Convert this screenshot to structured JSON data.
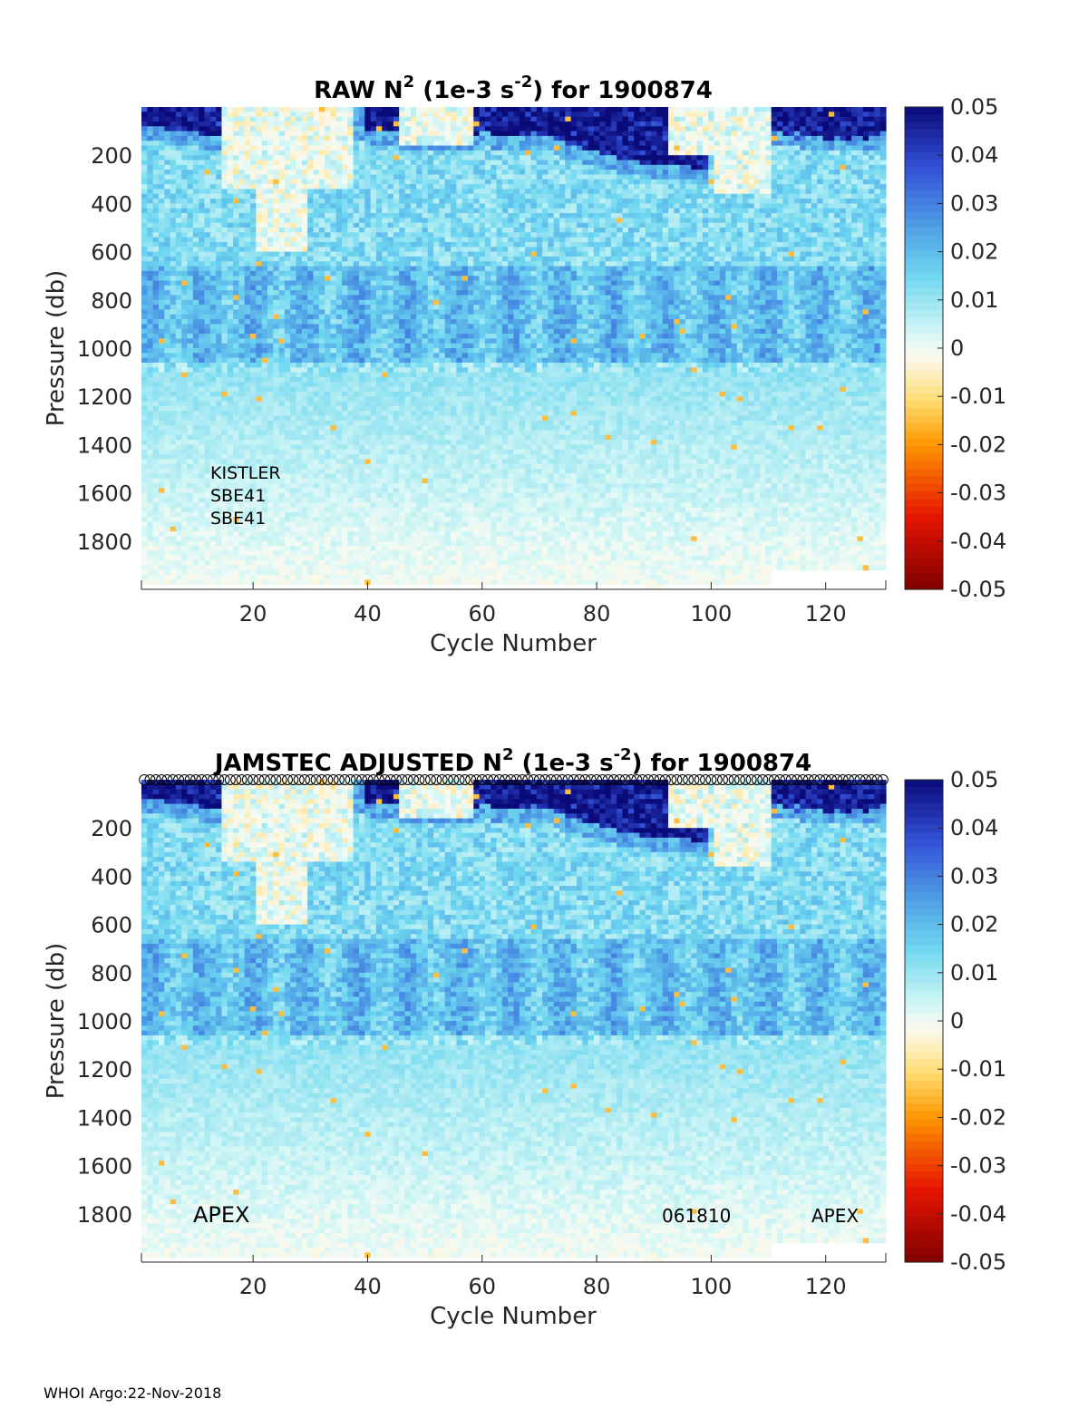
{
  "chart_data": [
    {
      "type": "heatmap",
      "title_prefix": "RAW N",
      "title_exp1": "2",
      "title_mid": " (1e-3 s",
      "title_exp2": "-2",
      "title_suffix": ") for 1900874",
      "xlabel": "Cycle Number",
      "ylabel": "Pressure (db)",
      "xlim": [
        1,
        130
      ],
      "ylim": [
        2000,
        0
      ],
      "xticks": [
        "20",
        "40",
        "60",
        "80",
        "100",
        "120"
      ],
      "xtick_values": [
        20,
        40,
        60,
        80,
        100,
        120
      ],
      "yticks": [
        "200",
        "400",
        "600",
        "800",
        "1000",
        "1200",
        "1400",
        "1600",
        "1800"
      ],
      "ytick_values": [
        200,
        400,
        600,
        800,
        1000,
        1200,
        1400,
        1600,
        1800
      ],
      "colorbar_ticks": [
        "0.05",
        "0.04",
        "0.03",
        "0.02",
        "0.01",
        "0",
        "-0.01",
        "-0.02",
        "-0.03",
        "-0.04",
        "-0.05"
      ],
      "colorbar_values": [
        0.05,
        0.04,
        0.03,
        0.02,
        0.01,
        0,
        -0.01,
        -0.02,
        -0.03,
        -0.04,
        -0.05
      ],
      "clim": [
        -0.05,
        0.05
      ],
      "annotations": [
        "KISTLER",
        "SBE41",
        "SBE41"
      ],
      "qc_markers": false
    },
    {
      "type": "heatmap",
      "title_prefix": "JAMSTEC  ADJUSTED N",
      "title_exp1": "2",
      "title_mid": " (1e-3 s",
      "title_exp2": "-2",
      "title_suffix": ") for 1900874",
      "xlabel": "Cycle Number",
      "ylabel": "Pressure (db)",
      "xlim": [
        1,
        130
      ],
      "ylim": [
        2000,
        0
      ],
      "xticks": [
        "20",
        "40",
        "60",
        "80",
        "100",
        "120"
      ],
      "xtick_values": [
        20,
        40,
        60,
        80,
        100,
        120
      ],
      "yticks": [
        "200",
        "400",
        "600",
        "800",
        "1000",
        "1200",
        "1400",
        "1600",
        "1800"
      ],
      "ytick_values": [
        200,
        400,
        600,
        800,
        1000,
        1200,
        1400,
        1600,
        1800
      ],
      "colorbar_ticks": [
        "0.05",
        "0.04",
        "0.03",
        "0.02",
        "0.01",
        "0",
        "-0.01",
        "-0.02",
        "-0.03",
        "-0.04",
        "-0.05"
      ],
      "colorbar_values": [
        0.05,
        0.04,
        0.03,
        0.02,
        0.01,
        0,
        -0.01,
        -0.02,
        -0.03,
        -0.04,
        -0.05
      ],
      "clim": [
        -0.05,
        0.05
      ],
      "annotations": [
        "APEX",
        "061810",
        "APEX"
      ],
      "qc_markers": true
    }
  ],
  "footer": {
    "text": "WHOI Argo:22-Nov-2018"
  }
}
